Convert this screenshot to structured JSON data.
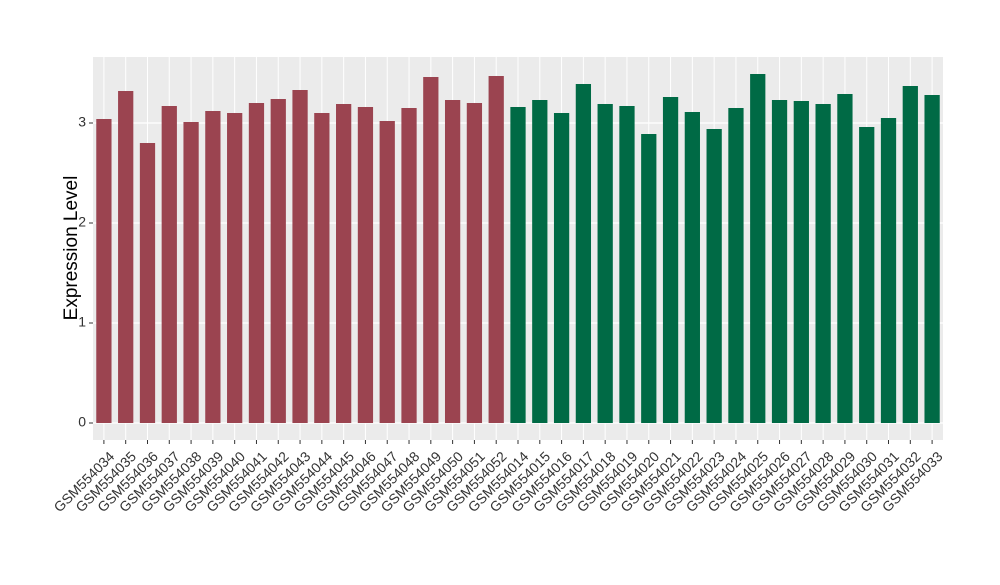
{
  "chart_data": {
    "type": "bar",
    "y_label": "Expression Level",
    "categories": [
      "GSM554034",
      "GSM554035",
      "GSM554036",
      "GSM554037",
      "GSM554038",
      "GSM554039",
      "GSM554040",
      "GSM554041",
      "GSM554042",
      "GSM554043",
      "GSM554044",
      "GSM554045",
      "GSM554046",
      "GSM554047",
      "GSM554048",
      "GSM554049",
      "GSM554050",
      "GSM554051",
      "GSM554052",
      "GSM554014",
      "GSM554015",
      "GSM554016",
      "GSM554017",
      "GSM554018",
      "GSM554019",
      "GSM554020",
      "GSM554021",
      "GSM554022",
      "GSM554023",
      "GSM554024",
      "GSM554025",
      "GSM554026",
      "GSM554027",
      "GSM554028",
      "GSM554029",
      "GSM554030",
      "GSM554031",
      "GSM554032",
      "GSM554033"
    ],
    "values": [
      3.04,
      3.32,
      2.8,
      3.17,
      3.01,
      3.12,
      3.1,
      3.2,
      3.24,
      3.33,
      3.1,
      3.19,
      3.16,
      3.02,
      3.15,
      3.46,
      3.23,
      3.2,
      3.47,
      3.16,
      3.23,
      3.1,
      3.39,
      3.19,
      3.17,
      2.89,
      3.26,
      3.11,
      2.94,
      3.15,
      3.49,
      3.23,
      3.22,
      3.19,
      3.29,
      2.96,
      3.05,
      3.37,
      3.28
    ],
    "colors": [
      "#9b4450",
      "#9b4450",
      "#9b4450",
      "#9b4450",
      "#9b4450",
      "#9b4450",
      "#9b4450",
      "#9b4450",
      "#9b4450",
      "#9b4450",
      "#9b4450",
      "#9b4450",
      "#9b4450",
      "#9b4450",
      "#9b4450",
      "#9b4450",
      "#9b4450",
      "#9b4450",
      "#9b4450",
      "#006a45",
      "#006a45",
      "#006a45",
      "#006a45",
      "#006a45",
      "#006a45",
      "#006a45",
      "#006a45",
      "#006a45",
      "#006a45",
      "#006a45",
      "#006a45",
      "#006a45",
      "#006a45",
      "#006a45",
      "#006a45",
      "#006a45",
      "#006a45",
      "#006a45",
      "#006a45"
    ],
    "ylim": [
      -0.17,
      3.66
    ],
    "yticks": [
      0,
      1,
      2,
      3
    ],
    "grid": true
  }
}
